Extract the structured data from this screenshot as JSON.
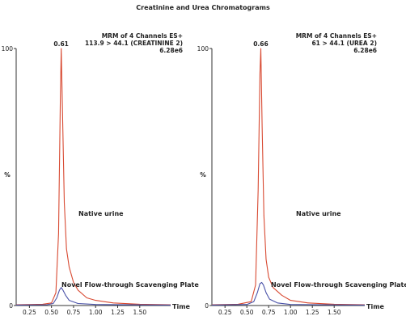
{
  "figure": {
    "title": "Creatinine and Urea Chromatograms"
  },
  "colors": {
    "native": "#d84a32",
    "plate": "#4a52a8",
    "axis": "#333333"
  },
  "chart_data": [
    {
      "type": "line",
      "title": "",
      "header": [
        "MRM of 4 Channels ES+",
        "113.9 > 44.1 (CREATININE 2)",
        "6.28e6"
      ],
      "xlabel": "Time",
      "ylabel": "%",
      "xlim": [
        0.1,
        1.85
      ],
      "ylim": [
        0,
        100
      ],
      "xticks": [
        "0.25",
        "0.50",
        "0.75",
        "1.00",
        "1.25",
        "1.50"
      ],
      "yticks": [
        "0",
        "100"
      ],
      "peak_label": "0.61",
      "series": [
        {
          "name": "Native urine",
          "x": [
            0.1,
            0.4,
            0.5,
            0.55,
            0.58,
            0.6,
            0.61,
            0.625,
            0.645,
            0.67,
            0.7,
            0.75,
            0.8,
            0.9,
            1.0,
            1.2,
            1.5,
            1.85
          ],
          "y": [
            0.3,
            0.5,
            1,
            5,
            28,
            80,
            100,
            75,
            40,
            22,
            15,
            9,
            6,
            3,
            2,
            1,
            0.5,
            0.3
          ]
        },
        {
          "name": "Novel Flow-through Scavenging Plate",
          "x": [
            0.1,
            0.45,
            0.52,
            0.56,
            0.59,
            0.61,
            0.63,
            0.66,
            0.7,
            0.8,
            1.0,
            1.85
          ],
          "y": [
            0.2,
            0.3,
            0.8,
            3,
            6,
            7,
            6,
            4,
            2,
            0.8,
            0.4,
            0.2
          ]
        }
      ]
    },
    {
      "type": "line",
      "title": "",
      "header": [
        "MRM of 4 Channels ES+",
        "61 > 44.1 (UREA 2)",
        "6.28e6"
      ],
      "xlabel": "Time",
      "ylabel": "%",
      "xlim": [
        0.1,
        1.85
      ],
      "ylim": [
        0,
        100
      ],
      "xticks": [
        "0.25",
        "0.50",
        "0.75",
        "1.00",
        "1.25",
        "1.50"
      ],
      "yticks": [
        "0",
        "100"
      ],
      "peak_label": "0.66",
      "series": [
        {
          "name": "Native urine",
          "x": [
            0.1,
            0.4,
            0.55,
            0.6,
            0.63,
            0.65,
            0.66,
            0.675,
            0.695,
            0.72,
            0.75,
            0.8,
            0.9,
            1.0,
            1.2,
            1.5,
            1.85
          ],
          "y": [
            0.3,
            0.5,
            1.5,
            8,
            45,
            90,
            100,
            70,
            35,
            18,
            11,
            7,
            4,
            2,
            1,
            0.5,
            0.3
          ]
        },
        {
          "name": "Novel Flow-through Scavenging Plate",
          "x": [
            0.1,
            0.5,
            0.58,
            0.62,
            0.65,
            0.67,
            0.69,
            0.72,
            0.76,
            0.85,
            1.0,
            1.85
          ],
          "y": [
            0.2,
            0.4,
            1.5,
            5,
            8.5,
            9,
            8,
            5,
            2.5,
            1,
            0.4,
            0.2
          ]
        }
      ]
    }
  ]
}
